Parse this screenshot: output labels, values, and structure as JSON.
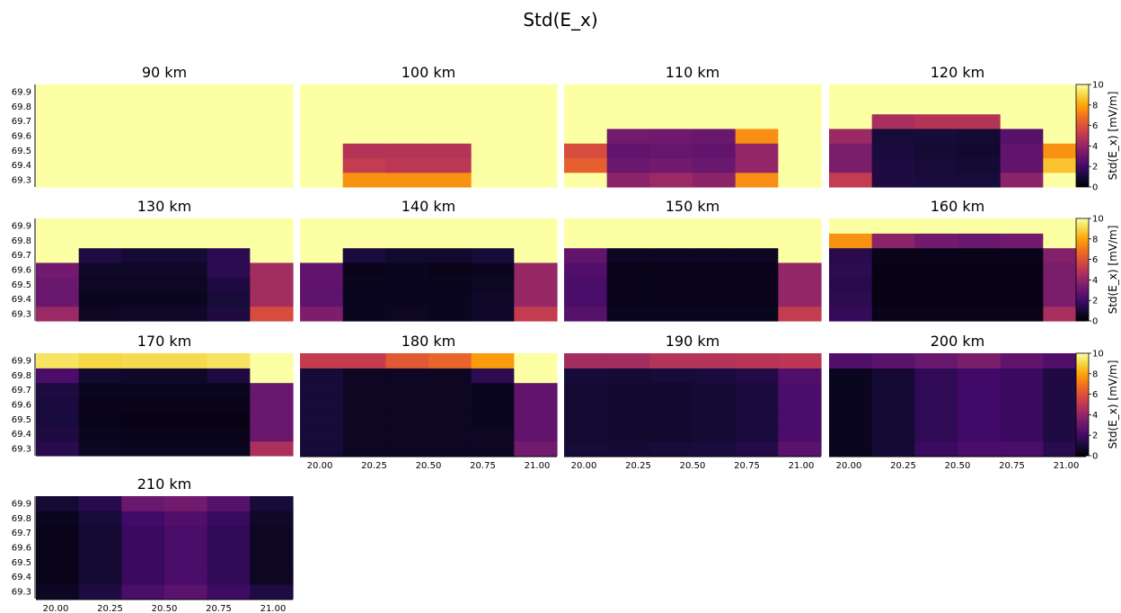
{
  "suptitle": "Std(E_x)",
  "colorbar": {
    "label": "Std(E_x) [mV/m]",
    "ticks": [
      0,
      2,
      4,
      6,
      8,
      10
    ],
    "range": [
      0,
      10
    ],
    "colormap": "inferno"
  },
  "chart_data": {
    "type": "heatmap",
    "title": "Std(E_x)",
    "x": [
      20.0,
      20.2,
      20.4,
      20.6,
      20.8,
      21.0
    ],
    "x_ticks": [
      "20.00",
      "20.25",
      "20.50",
      "20.75",
      "21.00"
    ],
    "y": [
      69.3,
      69.4,
      69.5,
      69.6,
      69.7,
      69.8,
      69.9
    ],
    "y_ticks": [
      "69.9",
      "69.8",
      "69.7",
      "69.6",
      "69.5",
      "69.4",
      "69.3"
    ],
    "zlim": [
      0,
      10
    ],
    "panels": [
      {
        "title": "90 km",
        "values": [
          [
            10,
            10,
            10,
            10,
            10,
            10
          ],
          [
            10,
            10,
            10,
            10,
            10,
            10
          ],
          [
            10,
            10,
            10,
            10,
            10,
            10
          ],
          [
            10,
            10,
            10,
            10,
            10,
            10
          ],
          [
            10,
            10,
            10,
            10,
            10,
            10
          ],
          [
            10,
            10,
            10,
            10,
            10,
            10
          ],
          [
            10,
            10,
            10,
            10,
            10,
            10
          ]
        ]
      },
      {
        "title": "100 km",
        "values": [
          [
            10,
            7.6,
            7.6,
            7.6,
            10,
            10
          ],
          [
            10,
            5.2,
            5.0,
            5.0,
            10,
            10
          ],
          [
            10,
            4.8,
            4.8,
            4.8,
            10,
            10
          ],
          [
            10,
            10,
            10,
            10,
            10,
            10
          ],
          [
            10,
            10,
            10,
            10,
            10,
            10
          ],
          [
            10,
            10,
            10,
            10,
            10,
            10
          ],
          [
            10,
            10,
            10,
            10,
            10,
            10
          ]
        ]
      },
      {
        "title": "110 km",
        "values": [
          [
            10,
            3.8,
            4.2,
            3.8,
            7.5,
            10
          ],
          [
            6.4,
            3.0,
            3.2,
            3.0,
            4.0,
            10
          ],
          [
            5.8,
            2.8,
            2.9,
            2.8,
            4.0,
            10
          ],
          [
            10,
            3.2,
            3.1,
            3.0,
            7.5,
            10
          ],
          [
            10,
            10,
            10,
            10,
            10,
            10
          ],
          [
            10,
            10,
            10,
            10,
            10,
            10
          ],
          [
            10,
            10,
            10,
            10,
            10,
            10
          ]
        ]
      },
      {
        "title": "120 km",
        "values": [
          [
            5.2,
            1.2,
            1.1,
            1.0,
            3.8,
            10
          ],
          [
            3.4,
            1.2,
            1.0,
            0.9,
            2.8,
            8.6
          ],
          [
            3.4,
            1.1,
            0.9,
            0.8,
            2.8,
            7.6
          ],
          [
            4.2,
            1.0,
            1.0,
            0.9,
            2.5,
            10
          ],
          [
            10,
            4.5,
            4.8,
            4.8,
            10,
            10
          ],
          [
            10,
            10,
            10,
            10,
            10,
            10
          ],
          [
            10,
            10,
            10,
            10,
            10,
            10
          ]
        ]
      },
      {
        "title": "130 km",
        "values": [
          [
            4.2,
            0.6,
            0.7,
            0.7,
            1.2,
            5.8
          ],
          [
            3.0,
            0.5,
            0.5,
            0.5,
            1.0,
            4.4
          ],
          [
            3.0,
            0.6,
            0.6,
            0.6,
            1.2,
            4.4
          ],
          [
            3.2,
            0.7,
            0.7,
            0.7,
            1.5,
            4.4
          ],
          [
            10,
            1.2,
            0.9,
            0.9,
            1.5,
            10
          ],
          [
            10,
            10,
            10,
            10,
            10,
            10
          ],
          [
            10,
            10,
            10,
            10,
            10,
            10
          ]
        ]
      },
      {
        "title": "140 km",
        "values": [
          [
            3.5,
            0.5,
            0.6,
            0.5,
            0.7,
            5.2
          ],
          [
            2.7,
            0.5,
            0.5,
            0.5,
            0.7,
            4.1
          ],
          [
            2.7,
            0.5,
            0.5,
            0.5,
            0.6,
            4.1
          ],
          [
            2.8,
            0.4,
            0.5,
            0.4,
            0.5,
            4.1
          ],
          [
            10,
            1.1,
            0.8,
            0.8,
            1.0,
            10
          ],
          [
            10,
            10,
            10,
            10,
            10,
            10
          ],
          [
            10,
            10,
            10,
            10,
            10,
            10
          ]
        ]
      },
      {
        "title": "150 km",
        "values": [
          [
            2.5,
            0.5,
            0.5,
            0.5,
            0.5,
            5.2
          ],
          [
            2.2,
            0.4,
            0.4,
            0.4,
            0.4,
            4.0
          ],
          [
            2.2,
            0.4,
            0.4,
            0.4,
            0.4,
            4.0
          ],
          [
            2.4,
            0.4,
            0.4,
            0.4,
            0.4,
            4.0
          ],
          [
            2.8,
            0.6,
            0.6,
            0.6,
            0.6,
            10
          ],
          [
            10,
            10,
            10,
            10,
            10,
            10
          ],
          [
            10,
            10,
            10,
            10,
            10,
            10
          ]
        ]
      },
      {
        "title": "160 km",
        "values": [
          [
            1.7,
            0.4,
            0.4,
            0.4,
            0.4,
            4.5
          ],
          [
            1.5,
            0.3,
            0.3,
            0.3,
            0.3,
            3.4
          ],
          [
            1.4,
            0.3,
            0.3,
            0.3,
            0.3,
            3.4
          ],
          [
            1.5,
            0.3,
            0.3,
            0.3,
            0.3,
            3.4
          ],
          [
            1.4,
            0.4,
            0.4,
            0.4,
            0.4,
            3.6
          ],
          [
            7.6,
            3.8,
            3.2,
            3.0,
            3.2,
            10
          ],
          [
            10,
            10,
            10,
            10,
            10,
            10
          ]
        ]
      },
      {
        "title": "170 km",
        "values": [
          [
            1.4,
            0.6,
            0.5,
            0.5,
            0.5,
            4.6
          ],
          [
            1.2,
            0.5,
            0.4,
            0.4,
            0.4,
            3.0
          ],
          [
            1.1,
            0.4,
            0.3,
            0.3,
            0.3,
            3.0
          ],
          [
            1.1,
            0.4,
            0.4,
            0.4,
            0.4,
            3.0
          ],
          [
            1.2,
            0.5,
            0.5,
            0.5,
            0.5,
            3.0
          ],
          [
            2.2,
            0.8,
            0.7,
            0.7,
            1.2,
            10
          ],
          [
            9.3,
            9.0,
            9.1,
            9.1,
            9.3,
            10
          ]
        ]
      },
      {
        "title": "180 km",
        "values": [
          [
            1.0,
            0.6,
            0.6,
            0.6,
            0.6,
            3.2
          ],
          [
            1.0,
            0.6,
            0.6,
            0.6,
            0.6,
            2.8
          ],
          [
            1.0,
            0.6,
            0.6,
            0.6,
            0.5,
            2.8
          ],
          [
            1.0,
            0.6,
            0.6,
            0.6,
            0.5,
            2.8
          ],
          [
            1.0,
            0.6,
            0.6,
            0.6,
            0.5,
            2.8
          ],
          [
            1.0,
            0.6,
            0.6,
            0.6,
            1.5,
            10
          ],
          [
            5.2,
            5.2,
            6.2,
            6.5,
            7.8,
            10
          ]
        ]
      },
      {
        "title": "190 km",
        "values": [
          [
            1.0,
            0.9,
            1.0,
            1.1,
            1.3,
            2.6
          ],
          [
            0.9,
            0.8,
            0.8,
            0.9,
            1.1,
            2.2
          ],
          [
            0.9,
            0.8,
            0.8,
            0.9,
            1.1,
            2.2
          ],
          [
            0.9,
            0.8,
            0.8,
            0.9,
            1.1,
            2.2
          ],
          [
            0.9,
            0.8,
            0.8,
            0.9,
            1.1,
            2.2
          ],
          [
            1.0,
            0.9,
            1.0,
            1.1,
            1.3,
            2.4
          ],
          [
            4.4,
            4.4,
            4.8,
            4.8,
            4.9,
            5.0
          ]
        ]
      },
      {
        "title": "200 km",
        "values": [
          [
            0.5,
            0.9,
            1.8,
            2.2,
            2.2,
            1.4
          ],
          [
            0.5,
            0.9,
            1.6,
            2.0,
            1.8,
            1.2
          ],
          [
            0.5,
            0.9,
            1.6,
            2.0,
            1.8,
            1.2
          ],
          [
            0.5,
            0.9,
            1.6,
            2.0,
            1.8,
            1.2
          ],
          [
            0.5,
            0.9,
            1.6,
            2.0,
            1.8,
            1.2
          ],
          [
            0.5,
            0.9,
            1.6,
            2.0,
            1.8,
            1.2
          ],
          [
            2.4,
            2.6,
            3.0,
            3.4,
            2.8,
            2.4
          ]
        ]
      },
      {
        "title": "210 km",
        "values": [
          [
            0.6,
            1.2,
            2.2,
            2.6,
            1.9,
            1.2
          ],
          [
            0.4,
            0.9,
            1.8,
            2.2,
            1.6,
            0.6
          ],
          [
            0.4,
            0.9,
            1.8,
            2.2,
            1.6,
            0.6
          ],
          [
            0.4,
            0.9,
            1.8,
            2.2,
            1.6,
            0.6
          ],
          [
            0.4,
            0.9,
            1.8,
            2.2,
            1.6,
            0.6
          ],
          [
            0.5,
            1.0,
            2.0,
            2.4,
            1.8,
            0.7
          ],
          [
            0.9,
            1.4,
            3.0,
            3.2,
            2.5,
            1.0
          ]
        ]
      }
    ]
  }
}
